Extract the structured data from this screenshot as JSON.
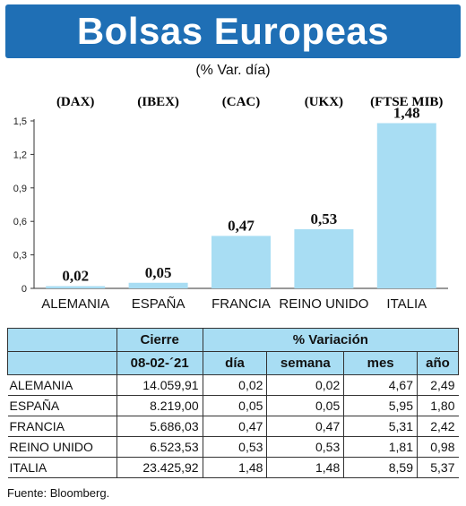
{
  "title": "Bolsas Europeas",
  "subtitle": "(% Var. día)",
  "chart_data": {
    "type": "bar",
    "index_labels": [
      "(DAX)",
      "(IBEX)",
      "(CAC)",
      "(UKX)",
      "(FTSE MIB)"
    ],
    "categories": [
      "ALEMANIA",
      "ESPAÑA",
      "FRANCIA",
      "REINO UNIDO",
      "ITALIA"
    ],
    "values": [
      0.02,
      0.05,
      0.47,
      0.53,
      1.48
    ],
    "value_labels": [
      "0,02",
      "0,05",
      "0,47",
      "0,53",
      "1,48"
    ],
    "yticks": [
      0,
      0.3,
      0.6,
      0.9,
      1.2,
      1.5
    ],
    "ytick_labels": [
      "0",
      "0,3",
      "0,6",
      "0,9",
      "1,2",
      "1,5"
    ],
    "ylim": [
      0,
      1.5
    ],
    "bar_color": "#a8ddf3",
    "grid": false
  },
  "table": {
    "header_cierre": "Cierre",
    "header_variacion": "% Variación",
    "header_date": "08-02-´21",
    "header_dia": "día",
    "header_semana": "semana",
    "header_mes": "mes",
    "header_anio": "año",
    "rows": [
      {
        "name": "ALEMANIA",
        "cierre": "14.059,91",
        "dia": "0,02",
        "semana": "0,02",
        "mes": "4,67",
        "anio": "2,49"
      },
      {
        "name": "ESPAÑA",
        "cierre": "8.219,00",
        "dia": "0,05",
        "semana": "0,05",
        "mes": "5,95",
        "anio": "1,80"
      },
      {
        "name": "FRANCIA",
        "cierre": "5.686,03",
        "dia": "0,47",
        "semana": "0,47",
        "mes": "5,31",
        "anio": "2,42"
      },
      {
        "name": "REINO UNIDO",
        "cierre": "6.523,53",
        "dia": "0,53",
        "semana": "0,53",
        "mes": "1,81",
        "anio": "0,98"
      },
      {
        "name": "ITALIA",
        "cierre": "23.425,92",
        "dia": "1,48",
        "semana": "1,48",
        "mes": "8,59",
        "anio": "5,37"
      }
    ]
  },
  "source": "Fuente: Bloomberg.",
  "colors": {
    "banner": "#1f6fb5",
    "header_fill": "#a8ddf3",
    "bar": "#a8ddf3"
  }
}
